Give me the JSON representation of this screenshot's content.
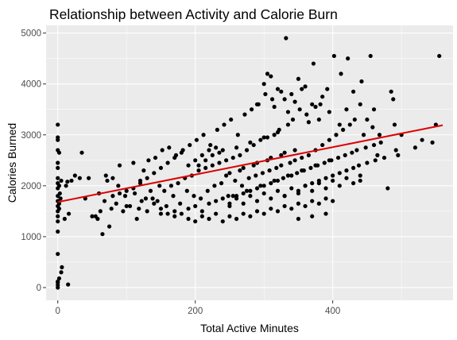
{
  "chart_data": {
    "type": "scatter",
    "title": "Relationship between Activity and Calorie Burn",
    "xlabel": "Total Active Minutes",
    "ylabel": "Calories Burned",
    "xlim": [
      -17,
      575
    ],
    "ylim": [
      -250,
      5150
    ],
    "x_ticks": [
      0,
      200,
      400
    ],
    "x_tick_labels": [
      "0",
      "200",
      "400"
    ],
    "y_ticks": [
      0,
      1000,
      2000,
      3000,
      4000,
      5000
    ],
    "y_tick_labels": [
      "0",
      "1000",
      "2000",
      "3000",
      "4000",
      "5000"
    ],
    "grid": true,
    "legend": "none",
    "colors": {
      "points": "#000000",
      "trend": "#dd0000",
      "panel": "#ebebeb",
      "grid": "#ffffff"
    },
    "trend_line": {
      "type": "linear",
      "x": [
        0,
        560
      ],
      "y": [
        1680,
        3190
      ]
    },
    "points": [
      [
        0,
        0
      ],
      [
        0,
        50
      ],
      [
        0,
        100
      ],
      [
        0,
        120
      ],
      [
        2,
        180
      ],
      [
        5,
        300
      ],
      [
        6,
        400
      ],
      [
        15,
        60
      ],
      [
        0,
        660
      ],
      [
        0,
        1100
      ],
      [
        0,
        1300
      ],
      [
        0,
        1400
      ],
      [
        0,
        1500
      ],
      [
        2,
        1550
      ],
      [
        0,
        1600
      ],
      [
        2,
        1650
      ],
      [
        0,
        1700
      ],
      [
        4,
        1750
      ],
      [
        0,
        1800
      ],
      [
        3,
        1850
      ],
      [
        0,
        1950
      ],
      [
        2,
        2000
      ],
      [
        0,
        2050
      ],
      [
        5,
        2100
      ],
      [
        0,
        2150
      ],
      [
        0,
        2350
      ],
      [
        0,
        2450
      ],
      [
        2,
        2650
      ],
      [
        0,
        2700
      ],
      [
        0,
        2900
      ],
      [
        0,
        2950
      ],
      [
        0,
        3200
      ],
      [
        10,
        1350
      ],
      [
        16,
        1450
      ],
      [
        12,
        2000
      ],
      [
        14,
        2080
      ],
      [
        20,
        2100
      ],
      [
        25,
        2200
      ],
      [
        32,
        2150
      ],
      [
        35,
        2650
      ],
      [
        40,
        1750
      ],
      [
        45,
        2150
      ],
      [
        50,
        1400
      ],
      [
        55,
        1400
      ],
      [
        58,
        1350
      ],
      [
        60,
        1850
      ],
      [
        62,
        1500
      ],
      [
        65,
        1050
      ],
      [
        68,
        1700
      ],
      [
        70,
        2200
      ],
      [
        72,
        2100
      ],
      [
        75,
        1200
      ],
      [
        78,
        1550
      ],
      [
        80,
        2150
      ],
      [
        85,
        1650
      ],
      [
        88,
        2000
      ],
      [
        90,
        2400
      ],
      [
        95,
        1500
      ],
      [
        98,
        1800
      ],
      [
        100,
        1600
      ],
      [
        105,
        1600
      ],
      [
        110,
        2450
      ],
      [
        112,
        1850
      ],
      [
        115,
        1350
      ],
      [
        118,
        1550
      ],
      [
        120,
        2100
      ],
      [
        122,
        1700
      ],
      [
        125,
        2300
      ],
      [
        128,
        1750
      ],
      [
        130,
        1500
      ],
      [
        132,
        2500
      ],
      [
        135,
        1900
      ],
      [
        138,
        1750
      ],
      [
        140,
        1650
      ],
      [
        142,
        2550
      ],
      [
        145,
        1700
      ],
      [
        148,
        2000
      ],
      [
        150,
        1550
      ],
      [
        152,
        2700
      ],
      [
        155,
        1900
      ],
      [
        158,
        1600
      ],
      [
        160,
        1450
      ],
      [
        162,
        2750
      ],
      [
        165,
        2000
      ],
      [
        168,
        1800
      ],
      [
        170,
        1500
      ],
      [
        172,
        2600
      ],
      [
        175,
        2050
      ],
      [
        178,
        1650
      ],
      [
        180,
        1450
      ],
      [
        182,
        2700
      ],
      [
        185,
        2150
      ],
      [
        188,
        1900
      ],
      [
        190,
        1550
      ],
      [
        192,
        2800
      ],
      [
        195,
        2200
      ],
      [
        198,
        1800
      ],
      [
        200,
        1600
      ],
      [
        202,
        2900
      ],
      [
        205,
        2300
      ],
      [
        208,
        1750
      ],
      [
        210,
        1500
      ],
      [
        212,
        3000
      ],
      [
        215,
        2350
      ],
      [
        218,
        1900
      ],
      [
        220,
        1650
      ],
      [
        222,
        2800
      ],
      [
        225,
        2400
      ],
      [
        228,
        2000
      ],
      [
        230,
        1700
      ],
      [
        232,
        3100
      ],
      [
        235,
        2450
      ],
      [
        238,
        2050
      ],
      [
        240,
        1750
      ],
      [
        242,
        3200
      ],
      [
        245,
        2500
      ],
      [
        248,
        1800
      ],
      [
        250,
        1650
      ],
      [
        252,
        3300
      ],
      [
        255,
        2550
      ],
      [
        258,
        2100
      ],
      [
        260,
        1800
      ],
      [
        262,
        3000
      ],
      [
        265,
        2600
      ],
      [
        268,
        2000
      ],
      [
        270,
        1850
      ],
      [
        272,
        3400
      ],
      [
        275,
        2700
      ],
      [
        278,
        2150
      ],
      [
        280,
        1900
      ],
      [
        282,
        3500
      ],
      [
        285,
        2800
      ],
      [
        288,
        2200
      ],
      [
        290,
        1950
      ],
      [
        292,
        3600
      ],
      [
        295,
        2900
      ],
      [
        298,
        2250
      ],
      [
        300,
        2000
      ],
      [
        302,
        3800
      ],
      [
        305,
        2950
      ],
      [
        308,
        2300
      ],
      [
        310,
        2050
      ],
      [
        312,
        3700
      ],
      [
        315,
        3000
      ],
      [
        318,
        2350
      ],
      [
        320,
        2100
      ],
      [
        322,
        3100
      ],
      [
        325,
        2400
      ],
      [
        328,
        2150
      ],
      [
        330,
        1800
      ],
      [
        332,
        4900
      ],
      [
        335,
        3200
      ],
      [
        338,
        2450
      ],
      [
        340,
        2200
      ],
      [
        342,
        3300
      ],
      [
        345,
        2500
      ],
      [
        348,
        2250
      ],
      [
        350,
        1900
      ],
      [
        352,
        3500
      ],
      [
        355,
        2550
      ],
      [
        358,
        2300
      ],
      [
        360,
        2000
      ],
      [
        362,
        3400
      ],
      [
        365,
        2600
      ],
      [
        368,
        2350
      ],
      [
        370,
        2050
      ],
      [
        372,
        4400
      ],
      [
        375,
        2700
      ],
      [
        378,
        2400
      ],
      [
        380,
        2100
      ],
      [
        382,
        3600
      ],
      [
        385,
        2800
      ],
      [
        388,
        2450
      ],
      [
        390,
        2150
      ],
      [
        392,
        3900
      ],
      [
        395,
        2900
      ],
      [
        398,
        2500
      ],
      [
        400,
        2200
      ],
      [
        402,
        4550
      ],
      [
        405,
        3000
      ],
      [
        408,
        2550
      ],
      [
        410,
        2250
      ],
      [
        412,
        4200
      ],
      [
        415,
        3100
      ],
      [
        418,
        2600
      ],
      [
        420,
        2300
      ],
      [
        422,
        4500
      ],
      [
        425,
        3200
      ],
      [
        428,
        2650
      ],
      [
        430,
        2350
      ],
      [
        432,
        3300
      ],
      [
        435,
        2700
      ],
      [
        438,
        2400
      ],
      [
        440,
        2200
      ],
      [
        442,
        4050
      ],
      [
        445,
        3000
      ],
      [
        448,
        2750
      ],
      [
        450,
        2450
      ],
      [
        455,
        4550
      ],
      [
        458,
        3150
      ],
      [
        460,
        2800
      ],
      [
        462,
        2500
      ],
      [
        465,
        2600
      ],
      [
        468,
        3000
      ],
      [
        470,
        2850
      ],
      [
        475,
        2550
      ],
      [
        480,
        1950
      ],
      [
        485,
        3850
      ],
      [
        488,
        3700
      ],
      [
        490,
        3200
      ],
      [
        492,
        2700
      ],
      [
        495,
        2600
      ],
      [
        500,
        3000
      ],
      [
        520,
        2750
      ],
      [
        530,
        2900
      ],
      [
        545,
        2850
      ],
      [
        550,
        3200
      ],
      [
        555,
        4550
      ],
      [
        240,
        2700
      ],
      [
        260,
        2750
      ],
      [
        280,
        2850
      ],
      [
        300,
        2950
      ],
      [
        320,
        3050
      ],
      [
        250,
        2250
      ],
      [
        270,
        2350
      ],
      [
        290,
        2450
      ],
      [
        310,
        2550
      ],
      [
        330,
        2650
      ],
      [
        245,
        2200
      ],
      [
        265,
        2300
      ],
      [
        285,
        2400
      ],
      [
        305,
        2500
      ],
      [
        325,
        2600
      ],
      [
        345,
        2700
      ],
      [
        255,
        1800
      ],
      [
        275,
        1900
      ],
      [
        295,
        2000
      ],
      [
        315,
        2100
      ],
      [
        335,
        2200
      ],
      [
        355,
        2300
      ],
      [
        375,
        2400
      ],
      [
        395,
        2500
      ],
      [
        260,
        1750
      ],
      [
        280,
        1800
      ],
      [
        300,
        1850
      ],
      [
        320,
        1900
      ],
      [
        340,
        1950
      ],
      [
        360,
        2000
      ],
      [
        380,
        2050
      ],
      [
        400,
        2100
      ],
      [
        420,
        2150
      ],
      [
        440,
        2100
      ],
      [
        250,
        1600
      ],
      [
        270,
        1650
      ],
      [
        290,
        1700
      ],
      [
        310,
        1750
      ],
      [
        330,
        1800
      ],
      [
        350,
        1850
      ],
      [
        370,
        1900
      ],
      [
        390,
        1950
      ],
      [
        410,
        2000
      ],
      [
        430,
        2050
      ],
      [
        340,
        3800
      ],
      [
        350,
        4100
      ],
      [
        360,
        3950
      ],
      [
        370,
        3600
      ],
      [
        380,
        3300
      ],
      [
        300,
        4000
      ],
      [
        310,
        4150
      ],
      [
        320,
        3900
      ],
      [
        330,
        3700
      ],
      [
        290,
        3600
      ],
      [
        305,
        4200
      ],
      [
        315,
        3550
      ],
      [
        325,
        3850
      ],
      [
        335,
        3450
      ],
      [
        345,
        3650
      ],
      [
        355,
        3900
      ],
      [
        365,
        3250
      ],
      [
        375,
        3550
      ],
      [
        385,
        3750
      ],
      [
        395,
        3450
      ],
      [
        410,
        3200
      ],
      [
        420,
        3500
      ],
      [
        430,
        3850
      ],
      [
        440,
        3600
      ],
      [
        450,
        3300
      ],
      [
        460,
        3500
      ],
      [
        200,
        2500
      ],
      [
        210,
        2600
      ],
      [
        220,
        2700
      ],
      [
        230,
        2750
      ],
      [
        205,
        2400
      ],
      [
        215,
        2500
      ],
      [
        225,
        2600
      ],
      [
        235,
        2650
      ],
      [
        150,
        2350
      ],
      [
        160,
        2450
      ],
      [
        170,
        2550
      ],
      [
        180,
        2650
      ],
      [
        190,
        2400
      ],
      [
        140,
        2250
      ],
      [
        130,
        2150
      ],
      [
        120,
        2050
      ],
      [
        110,
        1950
      ],
      [
        100,
        1900
      ],
      [
        90,
        1850
      ],
      [
        80,
        1800
      ],
      [
        150,
        1450
      ],
      [
        170,
        1400
      ],
      [
        190,
        1350
      ],
      [
        210,
        1400
      ],
      [
        230,
        1450
      ],
      [
        250,
        1400
      ],
      [
        270,
        1450
      ],
      [
        290,
        1500
      ],
      [
        310,
        1550
      ],
      [
        330,
        1600
      ],
      [
        350,
        1650
      ],
      [
        370,
        1700
      ],
      [
        390,
        1750
      ],
      [
        200,
        1300
      ],
      [
        220,
        1350
      ],
      [
        240,
        1300
      ],
      [
        260,
        1350
      ],
      [
        280,
        1400
      ],
      [
        300,
        1450
      ],
      [
        320,
        1500
      ],
      [
        340,
        1550
      ],
      [
        360,
        1600
      ],
      [
        380,
        1650
      ],
      [
        400,
        1700
      ],
      [
        350,
        1350
      ],
      [
        370,
        1400
      ],
      [
        390,
        1450
      ]
    ]
  }
}
